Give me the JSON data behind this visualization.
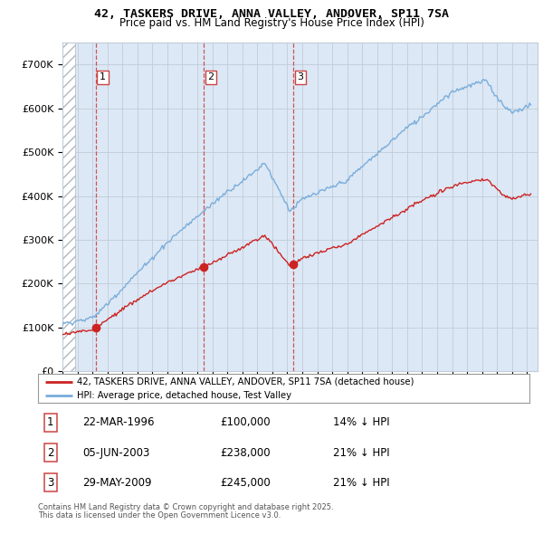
{
  "title": "42, TASKERS DRIVE, ANNA VALLEY, ANDOVER, SP11 7SA",
  "subtitle": "Price paid vs. HM Land Registry's House Price Index (HPI)",
  "legend_line1": "42, TASKERS DRIVE, ANNA VALLEY, ANDOVER, SP11 7SA (detached house)",
  "legend_line2": "HPI: Average price, detached house, Test Valley",
  "footer_line1": "Contains HM Land Registry data © Crown copyright and database right 2025.",
  "footer_line2": "This data is licensed under the Open Government Licence v3.0.",
  "table": [
    {
      "num": "1",
      "date": "22-MAR-1996",
      "price": "£100,000",
      "vs": "14% ↓ HPI"
    },
    {
      "num": "2",
      "date": "05-JUN-2003",
      "price": "£238,000",
      "vs": "21% ↓ HPI"
    },
    {
      "num": "3",
      "date": "29-MAY-2009",
      "price": "£245,000",
      "vs": "21% ↓ HPI"
    }
  ],
  "sale_dates_year": [
    1996.22,
    2003.43,
    2009.41
  ],
  "sale_prices": [
    100000,
    238000,
    245000
  ],
  "ylim": [
    0,
    750000
  ],
  "yticks": [
    0,
    100000,
    200000,
    300000,
    400000,
    500000,
    600000,
    700000
  ],
  "ytick_labels": [
    "£0",
    "£100K",
    "£200K",
    "£300K",
    "£400K",
    "£500K",
    "£600K",
    "£700K"
  ],
  "xlim_start": 1994.0,
  "xlim_end": 2025.7,
  "hpi_color": "#7aaddb",
  "price_color": "#cc2222",
  "bg_color": "#dce8f5",
  "hatch_color": "#b0b8c0",
  "grid_color": "#c0ccd8",
  "dashed_line_color": "#cc4444"
}
